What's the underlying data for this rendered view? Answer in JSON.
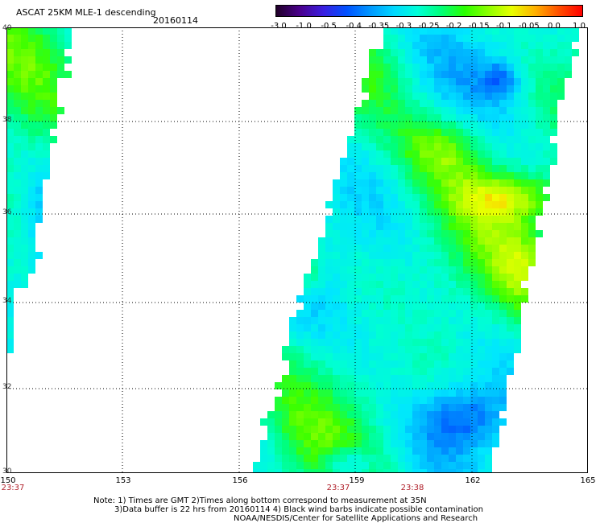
{
  "header": {
    "title": "ASCAT 25KM MLE-1 descending",
    "date": "20160114"
  },
  "colorbar": {
    "colors": [
      "#200028",
      "#4a008c",
      "#3a1ee0",
      "#0052ff",
      "#0098ff",
      "#00d8ff",
      "#00ffd8",
      "#00ff7a",
      "#2aff00",
      "#8cff00",
      "#e8ff00",
      "#ffb000",
      "#ff5000",
      "#ff0000"
    ],
    "ticks": [
      "-3.0",
      "-1.0",
      "-0.5",
      "-0.4",
      "-0.35",
      "-0.3",
      "-0.25",
      "-0.2",
      "-0.15",
      "-0.1",
      "-0.05",
      "0.0",
      "1.0"
    ]
  },
  "map": {
    "lat_labels": [
      "40",
      "38",
      "36",
      "34",
      "32",
      "30"
    ],
    "lon_labels": [
      "150",
      "153",
      "156",
      "159",
      "162",
      "165"
    ],
    "time_labels": [
      "23:37",
      "23:37",
      "23:38"
    ],
    "time_color": "#b0202a"
  },
  "notes": {
    "line1": "Note: 1) Times are GMT 2)Times along bottom correspond to measurement at 35N",
    "line2": "3)Data buffer is 22 hrs from 20160114 4) Black wind barbs indicate possible contamination",
    "line3": "NOAA/NESDIS/Center for Satellite Applications and Research"
  }
}
